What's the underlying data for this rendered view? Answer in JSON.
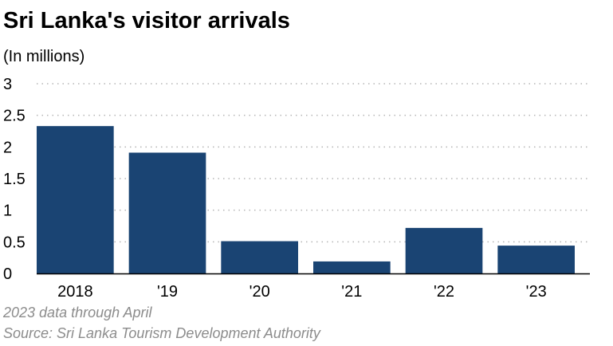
{
  "header": {
    "title": "Sri Lanka's visitor arrivals",
    "subtitle": "(In millions)"
  },
  "chart_data": {
    "type": "bar",
    "title": "Sri Lanka's visitor arrivals",
    "subtitle": "(In millions)",
    "categories": [
      "2018",
      "'19",
      "'20",
      "'21",
      "'22",
      "'23"
    ],
    "values": [
      2.33,
      1.91,
      0.51,
      0.19,
      0.72,
      0.44
    ],
    "ylim": [
      0,
      3
    ],
    "yticks": [
      0,
      0.5,
      1,
      1.5,
      2,
      2.5,
      3
    ],
    "ytick_labels": [
      "0",
      "0.5",
      "1",
      "1.5",
      "2",
      "2.5",
      "3"
    ],
    "xlabel": "",
    "ylabel": "",
    "grid": true,
    "bar_color": "#1a4473"
  },
  "footer": {
    "note": "2023 data through April",
    "source": "Source: Sri Lanka Tourism Development Authority"
  }
}
